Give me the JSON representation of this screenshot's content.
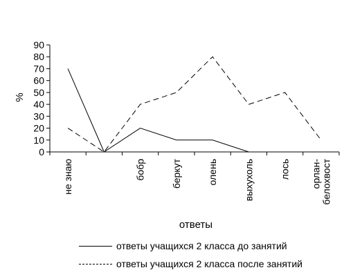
{
  "chart_data": {
    "type": "line",
    "title": "",
    "xlabel": "ответы",
    "ylabel": "%",
    "ylim": [
      0,
      90
    ],
    "yticks": [
      0,
      10,
      20,
      30,
      40,
      50,
      60,
      70,
      80,
      90
    ],
    "categories": [
      [
        "не знаю"
      ],
      [
        ""
      ],
      [
        "бобр"
      ],
      [
        "беркут"
      ],
      [
        "олень"
      ],
      [
        "выхухоль"
      ],
      [
        "лось"
      ],
      [
        "орлан-",
        "белохвост"
      ]
    ],
    "grid": false,
    "legend_position": "bottom",
    "series": [
      {
        "name": "ответы учащихся 2 класса до занятий",
        "style": "solid",
        "values": [
          70,
          0,
          20,
          10,
          10,
          0,
          null,
          null
        ]
      },
      {
        "name": "ответы учащихся 2 класса после занятий",
        "style": "dashed",
        "values": [
          20,
          0,
          40,
          50,
          80,
          40,
          50,
          10
        ]
      }
    ]
  }
}
